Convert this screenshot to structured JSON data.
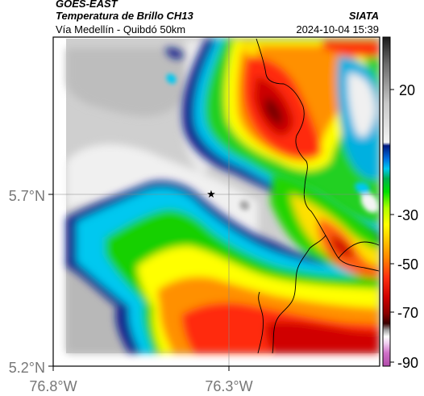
{
  "header": {
    "satellite": "GOES-EAST",
    "product": "Temperatura de Brillo CH13",
    "region": "Vía Medellín - Quibdó 50km",
    "agency": "SIATA",
    "timestamp": "2024-10-04 15:39"
  },
  "map": {
    "lat_labels": [
      "5.7°N",
      "5.2°N"
    ],
    "lon_labels": [
      "76.8°W",
      "76.3°W"
    ],
    "marker": "station-star"
  },
  "colorbar": {
    "labels": [
      "20",
      "-30",
      "-50",
      "-70",
      "-90"
    ],
    "colors": {
      "warm_gray_top": "#2a2a2a",
      "warm_gray_bottom": "#f4f4f4",
      "blue": "#0a1e8c",
      "cyan": "#00c8f0",
      "green": "#14d000",
      "yellow": "#ffff00",
      "orange": "#ff8800",
      "red": "#e81010",
      "dark_red": "#5a0000",
      "magenta": "#c040b0"
    }
  }
}
